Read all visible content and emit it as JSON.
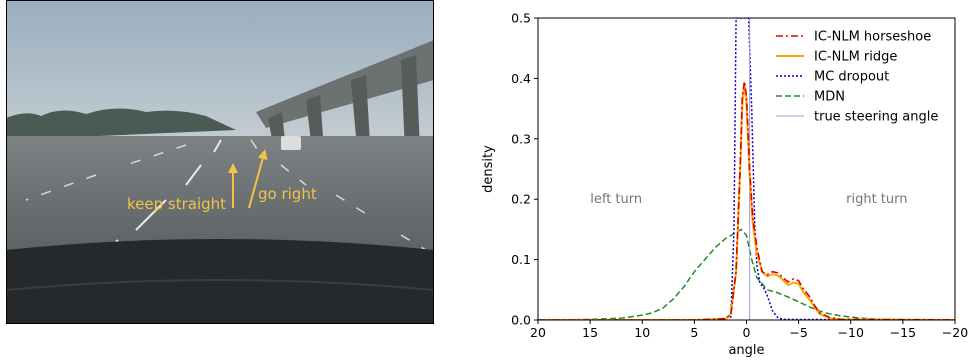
{
  "photo": {
    "annotations": {
      "keep_straight": "keep straight",
      "go_right": "go right"
    },
    "colors": {
      "sky": "#a9b8c4",
      "road": "#5f6466",
      "hood": "#26292c",
      "arrow": "#f2c24a"
    }
  },
  "chart_data": {
    "type": "line",
    "xlabel": "angle",
    "ylabel": "density",
    "xlim": [
      20,
      -20
    ],
    "ylim": [
      0,
      0.5
    ],
    "x_ticks": [
      20,
      15,
      10,
      5,
      0,
      -5,
      -10,
      -15,
      -20
    ],
    "x_tick_labels": [
      "20",
      "15",
      "10",
      "5",
      "0",
      "−5",
      "−10",
      "−15",
      "−20"
    ],
    "y_ticks": [
      0.0,
      0.1,
      0.2,
      0.3,
      0.4,
      0.5
    ],
    "y_tick_labels": [
      "0.0",
      "0.1",
      "0.2",
      "0.3",
      "0.4",
      "0.5"
    ],
    "legend_position": "top-right",
    "annotations": [
      {
        "text": "left turn",
        "x": 12.5,
        "y": 0.2
      },
      {
        "text": "right turn",
        "x": -12.5,
        "y": 0.2
      }
    ],
    "series": [
      {
        "name": "IC-NLM horseshoe",
        "color": "#dd0000",
        "dash": "7,3,2,3",
        "width": 1.6,
        "points": [
          [
            20,
            0
          ],
          [
            5,
            0
          ],
          [
            2,
            0.002
          ],
          [
            1.5,
            0.01
          ],
          [
            1,
            0.08
          ],
          [
            0.6,
            0.26
          ],
          [
            0.4,
            0.37
          ],
          [
            0.2,
            0.395
          ],
          [
            0,
            0.37
          ],
          [
            -0.3,
            0.25
          ],
          [
            -0.6,
            0.17
          ],
          [
            -1,
            0.12
          ],
          [
            -1.5,
            0.08
          ],
          [
            -2,
            0.075
          ],
          [
            -2.5,
            0.08
          ],
          [
            -3,
            0.078
          ],
          [
            -3.5,
            0.07
          ],
          [
            -4,
            0.063
          ],
          [
            -4.5,
            0.068
          ],
          [
            -5,
            0.065
          ],
          [
            -5.5,
            0.05
          ],
          [
            -6,
            0.04
          ],
          [
            -6.5,
            0.025
          ],
          [
            -7,
            0.012
          ],
          [
            -8,
            0.004
          ],
          [
            -9,
            0.001
          ],
          [
            -20,
            0
          ]
        ]
      },
      {
        "name": "IC-NLM ridge",
        "color": "#ffa500",
        "dash": "",
        "width": 2,
        "points": [
          [
            20,
            0
          ],
          [
            5,
            0
          ],
          [
            2,
            0.002
          ],
          [
            1.5,
            0.01
          ],
          [
            1,
            0.08
          ],
          [
            0.6,
            0.25
          ],
          [
            0.4,
            0.36
          ],
          [
            0.2,
            0.39
          ],
          [
            0,
            0.36
          ],
          [
            -0.3,
            0.24
          ],
          [
            -0.6,
            0.16
          ],
          [
            -1,
            0.11
          ],
          [
            -1.5,
            0.08
          ],
          [
            -2,
            0.072
          ],
          [
            -2.5,
            0.076
          ],
          [
            -3,
            0.074
          ],
          [
            -3.5,
            0.066
          ],
          [
            -4,
            0.058
          ],
          [
            -4.5,
            0.062
          ],
          [
            -5,
            0.06
          ],
          [
            -5.5,
            0.045
          ],
          [
            -6,
            0.035
          ],
          [
            -6.5,
            0.022
          ],
          [
            -7,
            0.01
          ],
          [
            -8,
            0.003
          ],
          [
            -9,
            0.001
          ],
          [
            -20,
            0
          ]
        ]
      },
      {
        "name": "MC dropout",
        "color": "#0000cc",
        "dash": "2,2",
        "width": 1.5,
        "points": [
          [
            20,
            0
          ],
          [
            3,
            0
          ],
          [
            1.5,
            0.005
          ],
          [
            1.2,
            0.15
          ],
          [
            1,
            0.5
          ],
          [
            0.8,
            0.5
          ],
          [
            0.5,
            0.5
          ],
          [
            0.3,
            0.5
          ],
          [
            0,
            0.5
          ],
          [
            -0.2,
            0.5
          ],
          [
            -0.5,
            0.35
          ],
          [
            -0.8,
            0.15
          ],
          [
            -1,
            0.09
          ],
          [
            -1.3,
            0.06
          ],
          [
            -1.6,
            0.055
          ],
          [
            -2,
            0.04
          ],
          [
            -2.5,
            0.015
          ],
          [
            -3,
            0.004
          ],
          [
            -3.5,
            0.001
          ],
          [
            -20,
            0
          ]
        ]
      },
      {
        "name": "MDN",
        "color": "#228b22",
        "dash": "6,3",
        "width": 1.5,
        "points": [
          [
            20,
            0
          ],
          [
            15,
            0.001
          ],
          [
            12,
            0.003
          ],
          [
            10,
            0.008
          ],
          [
            9,
            0.012
          ],
          [
            8,
            0.02
          ],
          [
            7,
            0.035
          ],
          [
            6,
            0.055
          ],
          [
            5,
            0.08
          ],
          [
            4,
            0.1
          ],
          [
            3,
            0.12
          ],
          [
            2,
            0.135
          ],
          [
            1,
            0.145
          ],
          [
            0.5,
            0.15
          ],
          [
            0,
            0.14
          ],
          [
            -0.5,
            0.1
          ],
          [
            -1,
            0.07
          ],
          [
            -2,
            0.05
          ],
          [
            -3,
            0.045
          ],
          [
            -4,
            0.038
          ],
          [
            -5,
            0.03
          ],
          [
            -6,
            0.022
          ],
          [
            -7,
            0.015
          ],
          [
            -8,
            0.01
          ],
          [
            -9,
            0.007
          ],
          [
            -10,
            0.005
          ],
          [
            -11,
            0.003
          ],
          [
            -13,
            0.001
          ],
          [
            -20,
            0
          ]
        ]
      },
      {
        "name": "true steering angle",
        "color": "#9999dd",
        "dash": "",
        "width": 1,
        "vertical_at": -0.3
      }
    ]
  }
}
